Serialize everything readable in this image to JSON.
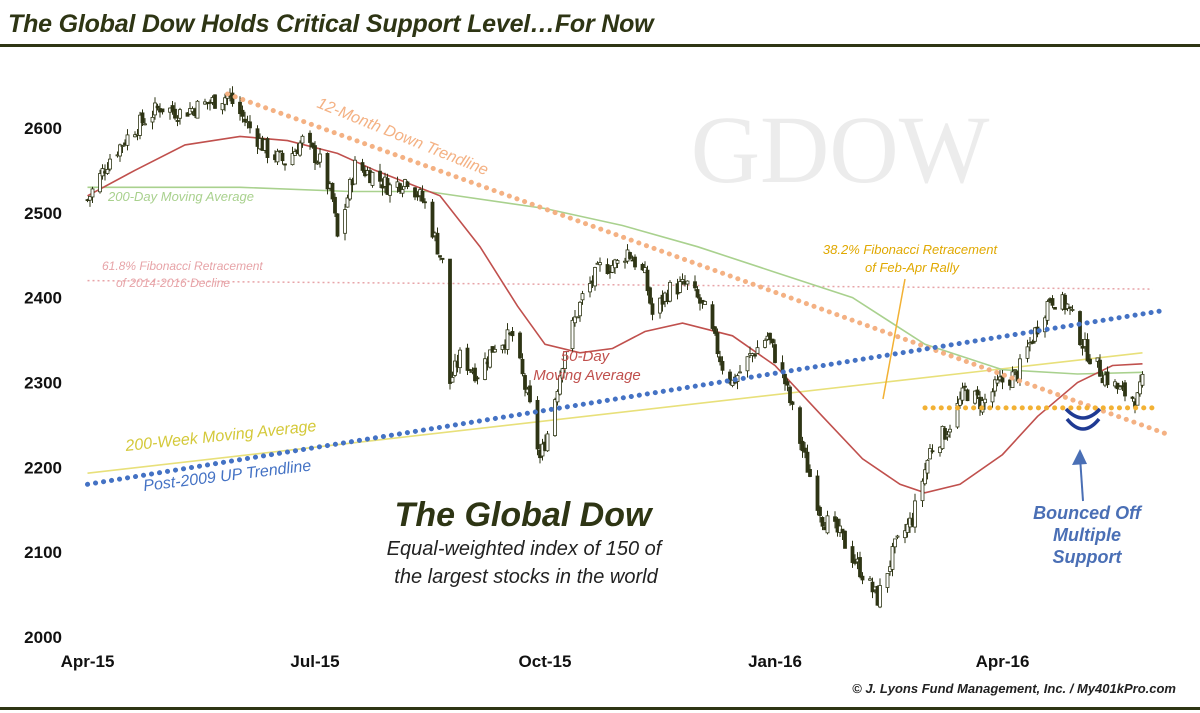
{
  "title": "The Global Dow Holds Critical Support Level…For Now",
  "footer": "© J. Lyons Fund Management, Inc. / My401kPro.com",
  "chart_data": {
    "type": "candlestick",
    "watermark": "GDOW",
    "ylim": [
      2000,
      2660
    ],
    "yticks": [
      2000,
      2100,
      2200,
      2300,
      2400,
      2500,
      2600
    ],
    "xlim": [
      "2015-03-31",
      "2016-06-05"
    ],
    "xticks": [
      {
        "label": "Apr-15",
        "date": "2015-04-01"
      },
      {
        "label": "Jul-15",
        "date": "2015-07-01"
      },
      {
        "label": "Oct-15",
        "date": "2015-10-01"
      },
      {
        "label": "Jan-16",
        "date": "2016-01-01"
      },
      {
        "label": "Apr-16",
        "date": "2016-04-01"
      }
    ],
    "price_path": [
      [
        "2015-04-01",
        2515
      ],
      [
        "2015-04-10",
        2565
      ],
      [
        "2015-04-20",
        2600
      ],
      [
        "2015-04-30",
        2625
      ],
      [
        "2015-05-08",
        2618
      ],
      [
        "2015-05-20",
        2630
      ],
      [
        "2015-05-27",
        2638
      ],
      [
        "2015-06-05",
        2600
      ],
      [
        "2015-06-12",
        2572
      ],
      [
        "2015-06-19",
        2560
      ],
      [
        "2015-06-26",
        2585
      ],
      [
        "2015-07-03",
        2560
      ],
      [
        "2015-07-08",
        2515
      ],
      [
        "2015-07-10",
        2470
      ],
      [
        "2015-07-17",
        2555
      ],
      [
        "2015-07-24",
        2545
      ],
      [
        "2015-07-31",
        2530
      ],
      [
        "2015-08-07",
        2540
      ],
      [
        "2015-08-14",
        2510
      ],
      [
        "2015-08-21",
        2440
      ],
      [
        "2015-08-24",
        2300
      ],
      [
        "2015-08-28",
        2330
      ],
      [
        "2015-09-04",
        2310
      ],
      [
        "2015-09-11",
        2345
      ],
      [
        "2015-09-18",
        2355
      ],
      [
        "2015-09-25",
        2270
      ],
      [
        "2015-09-29",
        2210
      ],
      [
        "2015-10-02",
        2240
      ],
      [
        "2015-10-09",
        2340
      ],
      [
        "2015-10-16",
        2400
      ],
      [
        "2015-10-23",
        2435
      ],
      [
        "2015-10-30",
        2440
      ],
      [
        "2015-11-03",
        2455
      ],
      [
        "2015-11-10",
        2425
      ],
      [
        "2015-11-13",
        2380
      ],
      [
        "2015-11-20",
        2410
      ],
      [
        "2015-11-27",
        2415
      ],
      [
        "2015-12-04",
        2385
      ],
      [
        "2015-12-11",
        2320
      ],
      [
        "2015-12-15",
        2300
      ],
      [
        "2015-12-22",
        2330
      ],
      [
        "2015-12-29",
        2355
      ],
      [
        "2016-01-05",
        2300
      ],
      [
        "2016-01-12",
        2220
      ],
      [
        "2016-01-20",
        2140
      ],
      [
        "2016-01-27",
        2120
      ],
      [
        "2016-02-03",
        2085
      ],
      [
        "2016-02-11",
        2045
      ],
      [
        "2016-02-18",
        2105
      ],
      [
        "2016-02-25",
        2140
      ],
      [
        "2016-03-03",
        2220
      ],
      [
        "2016-03-10",
        2245
      ],
      [
        "2016-03-17",
        2290
      ],
      [
        "2016-03-24",
        2275
      ],
      [
        "2016-03-31",
        2300
      ],
      [
        "2016-04-07",
        2310
      ],
      [
        "2016-04-14",
        2360
      ],
      [
        "2016-04-20",
        2400
      ],
      [
        "2016-04-27",
        2390
      ],
      [
        "2016-05-04",
        2340
      ],
      [
        "2016-05-11",
        2310
      ],
      [
        "2016-05-18",
        2290
      ],
      [
        "2016-05-25",
        2280
      ],
      [
        "2016-05-27",
        2300
      ]
    ],
    "lines": [
      {
        "name": "12-Month Down Trendline",
        "color": "#f4b183",
        "style": "dotted",
        "points": [
          [
            "2015-05-27",
            2640
          ],
          [
            "2016-06-05",
            2240
          ]
        ]
      },
      {
        "name": "Post-2009 UP Trendline",
        "color": "#4472c4",
        "style": "dotted",
        "points": [
          [
            "2015-04-01",
            2180
          ],
          [
            "2016-06-05",
            2385
          ]
        ]
      },
      {
        "name": "200-Week Moving Average",
        "color": "#e8e07a",
        "style": "solid",
        "points": [
          [
            "2015-04-01",
            2193
          ],
          [
            "2016-05-27",
            2335
          ]
        ]
      },
      {
        "name": "38.2% Fibonacci Retracement of Feb-Apr Rally",
        "color": "#f2b134",
        "style": "dotted",
        "points": [
          [
            "2016-03-01",
            2270
          ],
          [
            "2016-05-31",
            2270
          ]
        ]
      },
      {
        "name": "61.8% Fibonacci Retracement of 2014-2016 Decline",
        "color": "#e7a4a8",
        "style": "dotted-thin",
        "points": [
          [
            "2015-04-01",
            2420
          ],
          [
            "2016-05-31",
            2410
          ]
        ]
      },
      {
        "name": "200-Day Moving Average",
        "color": "#a9d18e",
        "style": "solid",
        "points": [
          [
            "2015-04-01",
            2530
          ],
          [
            "2015-06-01",
            2530
          ],
          [
            "2015-07-15",
            2525
          ],
          [
            "2015-08-15",
            2525
          ],
          [
            "2015-10-01",
            2505
          ],
          [
            "2015-11-01",
            2485
          ],
          [
            "2015-12-01",
            2460
          ],
          [
            "2016-01-01",
            2430
          ],
          [
            "2016-02-01",
            2400
          ],
          [
            "2016-03-01",
            2345
          ],
          [
            "2016-04-01",
            2315
          ],
          [
            "2016-05-01",
            2310
          ],
          [
            "2016-05-27",
            2312
          ]
        ]
      },
      {
        "name": "50-Day Moving Average",
        "color": "#c0504d",
        "style": "solid",
        "points": [
          [
            "2015-04-01",
            2520
          ],
          [
            "2015-04-20",
            2550
          ],
          [
            "2015-05-10",
            2580
          ],
          [
            "2015-06-01",
            2590
          ],
          [
            "2015-06-20",
            2585
          ],
          [
            "2015-07-10",
            2570
          ],
          [
            "2015-07-25",
            2550
          ],
          [
            "2015-08-20",
            2520
          ],
          [
            "2015-09-05",
            2460
          ],
          [
            "2015-09-20",
            2390
          ],
          [
            "2015-10-01",
            2345
          ],
          [
            "2015-10-15",
            2335
          ],
          [
            "2015-10-28",
            2340
          ],
          [
            "2015-11-10",
            2360
          ],
          [
            "2015-11-25",
            2370
          ],
          [
            "2015-12-15",
            2355
          ],
          [
            "2016-01-01",
            2320
          ],
          [
            "2016-01-20",
            2260
          ],
          [
            "2016-02-05",
            2210
          ],
          [
            "2016-02-20",
            2180
          ],
          [
            "2016-03-01",
            2170
          ],
          [
            "2016-03-15",
            2180
          ],
          [
            "2016-04-01",
            2215
          ],
          [
            "2016-04-15",
            2260
          ],
          [
            "2016-05-01",
            2300
          ],
          [
            "2016-05-15",
            2320
          ],
          [
            "2016-05-27",
            2322
          ]
        ]
      }
    ],
    "annotations": {
      "down_trend": "12-Month Down Trendline",
      "ma200d": "200-Day Moving Average",
      "fib618_line1": "61.8% Fibonacci Retracement",
      "fib618_line2": "of 2014-2016 Decline",
      "fib382_line1": "38.2% Fibonacci Retracement",
      "fib382_line2": "of Feb-Apr Rally",
      "ma50_line1": "50-Day",
      "ma50_line2": "Moving Average",
      "ma200w": "200-Week Moving Average",
      "up_trend": "Post-2009 UP Trendline",
      "main_title": "The Global Dow",
      "subtitle_line1": "Equal-weighted index of 150 of",
      "subtitle_line2": "the largest stocks in the world",
      "bounce_line1": "Bounced Off",
      "bounce_line2": "Multiple",
      "bounce_line3": "Support"
    },
    "colors": {
      "candle_up": "#ffffff",
      "candle_down": "#2e3514",
      "wick": "#2e3514",
      "bounce": "#1f3a93",
      "bounce_text": "#4a6fb5",
      "headline": "#2e3514"
    }
  }
}
